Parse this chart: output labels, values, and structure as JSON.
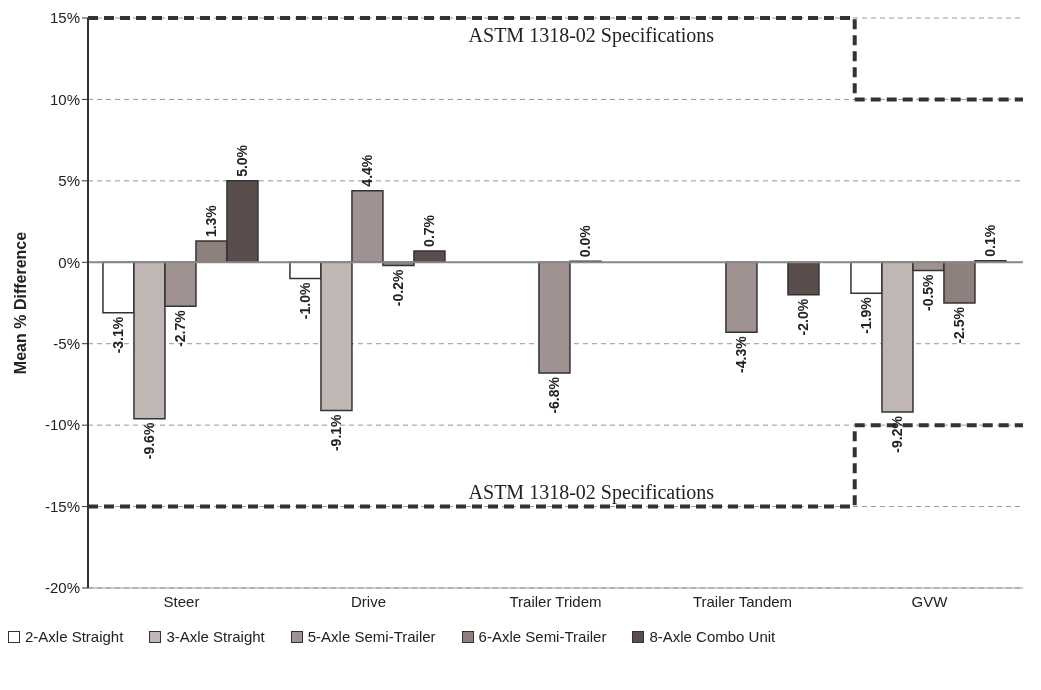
{
  "chart_data": {
    "type": "bar",
    "ylabel": "Mean % Difference",
    "categories": [
      "Steer",
      "Drive",
      "Trailer Tridem",
      "Trailer Tandem",
      "GVW"
    ],
    "series": [
      {
        "name": "2-Axle Straight",
        "color": "#ffffff",
        "values": [
          -3.1,
          -1.0,
          null,
          null,
          -1.9
        ],
        "value_labels": [
          "-3.1%",
          "-1.0%",
          null,
          null,
          "-1.9%"
        ]
      },
      {
        "name": "3-Axle Straight",
        "color": "#c0b6b4",
        "values": [
          -9.6,
          -9.1,
          null,
          null,
          -9.2
        ],
        "value_labels": [
          "-9.6%",
          "-9.1%",
          null,
          null,
          "-9.2%"
        ]
      },
      {
        "name": "5-Axle Semi-Trailer",
        "color": "#a09290",
        "values": [
          -2.7,
          4.4,
          -6.8,
          -4.3,
          -0.5
        ],
        "value_labels": [
          "-2.7%",
          "4.4%",
          "-6.8%",
          "-4.3%",
          "-0.5%"
        ]
      },
      {
        "name": "6-Axle Semi-Trailer",
        "color": "#8e807c",
        "values": [
          1.3,
          -0.2,
          0.0,
          null,
          -2.5
        ],
        "value_labels": [
          "1.3%",
          "-0.2%",
          "0.0%",
          null,
          "-2.5%"
        ]
      },
      {
        "name": "8-Axle Combo Unit",
        "color": "#5a4e4c",
        "values": [
          5.0,
          0.7,
          null,
          -2.0,
          0.1
        ],
        "value_labels": [
          "5.0%",
          "0.7%",
          null,
          "-2.0%",
          "0.1%"
        ]
      }
    ],
    "ylim": [
      -20,
      15
    ],
    "yticks": [
      {
        "value": -20,
        "label": "-20%"
      },
      {
        "value": -15,
        "label": "-15%"
      },
      {
        "value": -10,
        "label": "-10%"
      },
      {
        "value": -5,
        "label": "-5%"
      },
      {
        "value": 0,
        "label": "0%"
      },
      {
        "value": 5,
        "label": "5%"
      },
      {
        "value": 10,
        "label": "10%"
      },
      {
        "value": 15,
        "label": "15%"
      }
    ],
    "grid": "y",
    "legend": "bottom",
    "ref_lines": [
      {
        "axis": "y",
        "value": 15,
        "label": "ASTM 1318-02 Specifications",
        "color": "#333333",
        "line_style": "dashed"
      },
      {
        "axis": "y",
        "value": 10,
        "label": null,
        "color": "#333333",
        "line_style": "dashed"
      },
      {
        "axis": "y",
        "value": -15,
        "label": "ASTM 1318-02 Specifications",
        "color": "#333333",
        "line_style": "dashed"
      },
      {
        "axis": "y",
        "value": -10,
        "label": null,
        "color": "#333333",
        "line_style": "dashed"
      }
    ]
  }
}
